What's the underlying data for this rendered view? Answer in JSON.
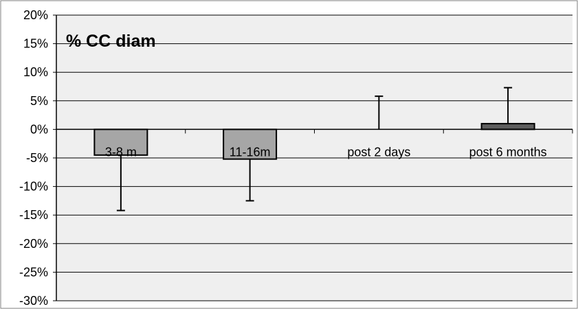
{
  "chart_data": {
    "type": "bar",
    "title": "% CC diam",
    "xlabel": "",
    "ylabel": "",
    "categories": [
      "3-8 m",
      "11-16m",
      "post 2 days",
      "post 6 months"
    ],
    "values": [
      -4.5,
      -5.2,
      0.0,
      1.0
    ],
    "error_bars": [
      -14.2,
      -12.5,
      5.8,
      7.3
    ],
    "ylim": [
      -30,
      20
    ],
    "yticks": [
      20,
      15,
      10,
      5,
      0,
      -5,
      -10,
      -15,
      -20,
      -25,
      -30
    ],
    "ytick_labels": [
      "20%",
      "15%",
      "10%",
      "5%",
      "0%",
      "-5%",
      "-10%",
      "-15%",
      "-20%",
      "-25%",
      "-30%"
    ],
    "grid": true,
    "legend": "none",
    "colors": {
      "plot_background": "#efefef",
      "gridline": "#000000",
      "bar_negative": "#a6a6a6",
      "bar_positive": "#5e5e5e",
      "bar_edge": "#000000",
      "error_bar": "#000000"
    }
  }
}
